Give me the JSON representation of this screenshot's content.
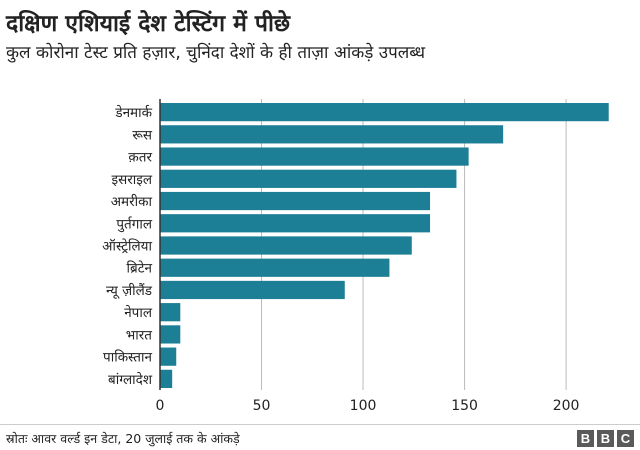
{
  "header": {
    "title": "दक्षिण एशियाई देश टेस्टिंग में पीछे",
    "subtitle": "कुल कोरोना टेस्ट प्रति हज़ार, चुनिंदा देशों के ही ताज़ा आंकड़े उपलब्ध"
  },
  "footer": {
    "source": "स्रोतः आवर वर्ल्ड इन डेटा, 20 जुलाई तक के आंकड़े",
    "logo": [
      "B",
      "B",
      "C"
    ]
  },
  "colors": {
    "bar": "#1d7f95",
    "grid": "#bbbbbb",
    "axis": "#333333",
    "text": "#222222"
  },
  "chart_data": {
    "type": "bar",
    "orientation": "horizontal",
    "title": "दक्षिण एशियाई देश टेस्टिंग में पीछे",
    "subtitle": "कुल कोरोना टेस्ट प्रति हज़ार, चुनिंदा देशों के ही ताज़ा आंकड़े उपलब्ध",
    "categories": [
      "डेनमार्क",
      "रूस",
      "क़तर",
      "इसराइल",
      "अमरीका",
      "पुर्तगाल",
      "ऑस्ट्रेलिया",
      "ब्रिटेन",
      "न्यू ज़ीलैंड",
      "नेपाल",
      "भारत",
      "पाकिस्तान",
      "बांग्लादेश"
    ],
    "values": [
      221,
      169,
      152,
      146,
      133,
      133,
      124,
      113,
      91,
      10,
      10,
      8,
      6
    ],
    "xlim": [
      0,
      230
    ],
    "xticks": [
      0,
      50,
      100,
      150,
      200
    ],
    "xlabel": "",
    "ylabel": "",
    "grid": true,
    "legend": "none"
  }
}
